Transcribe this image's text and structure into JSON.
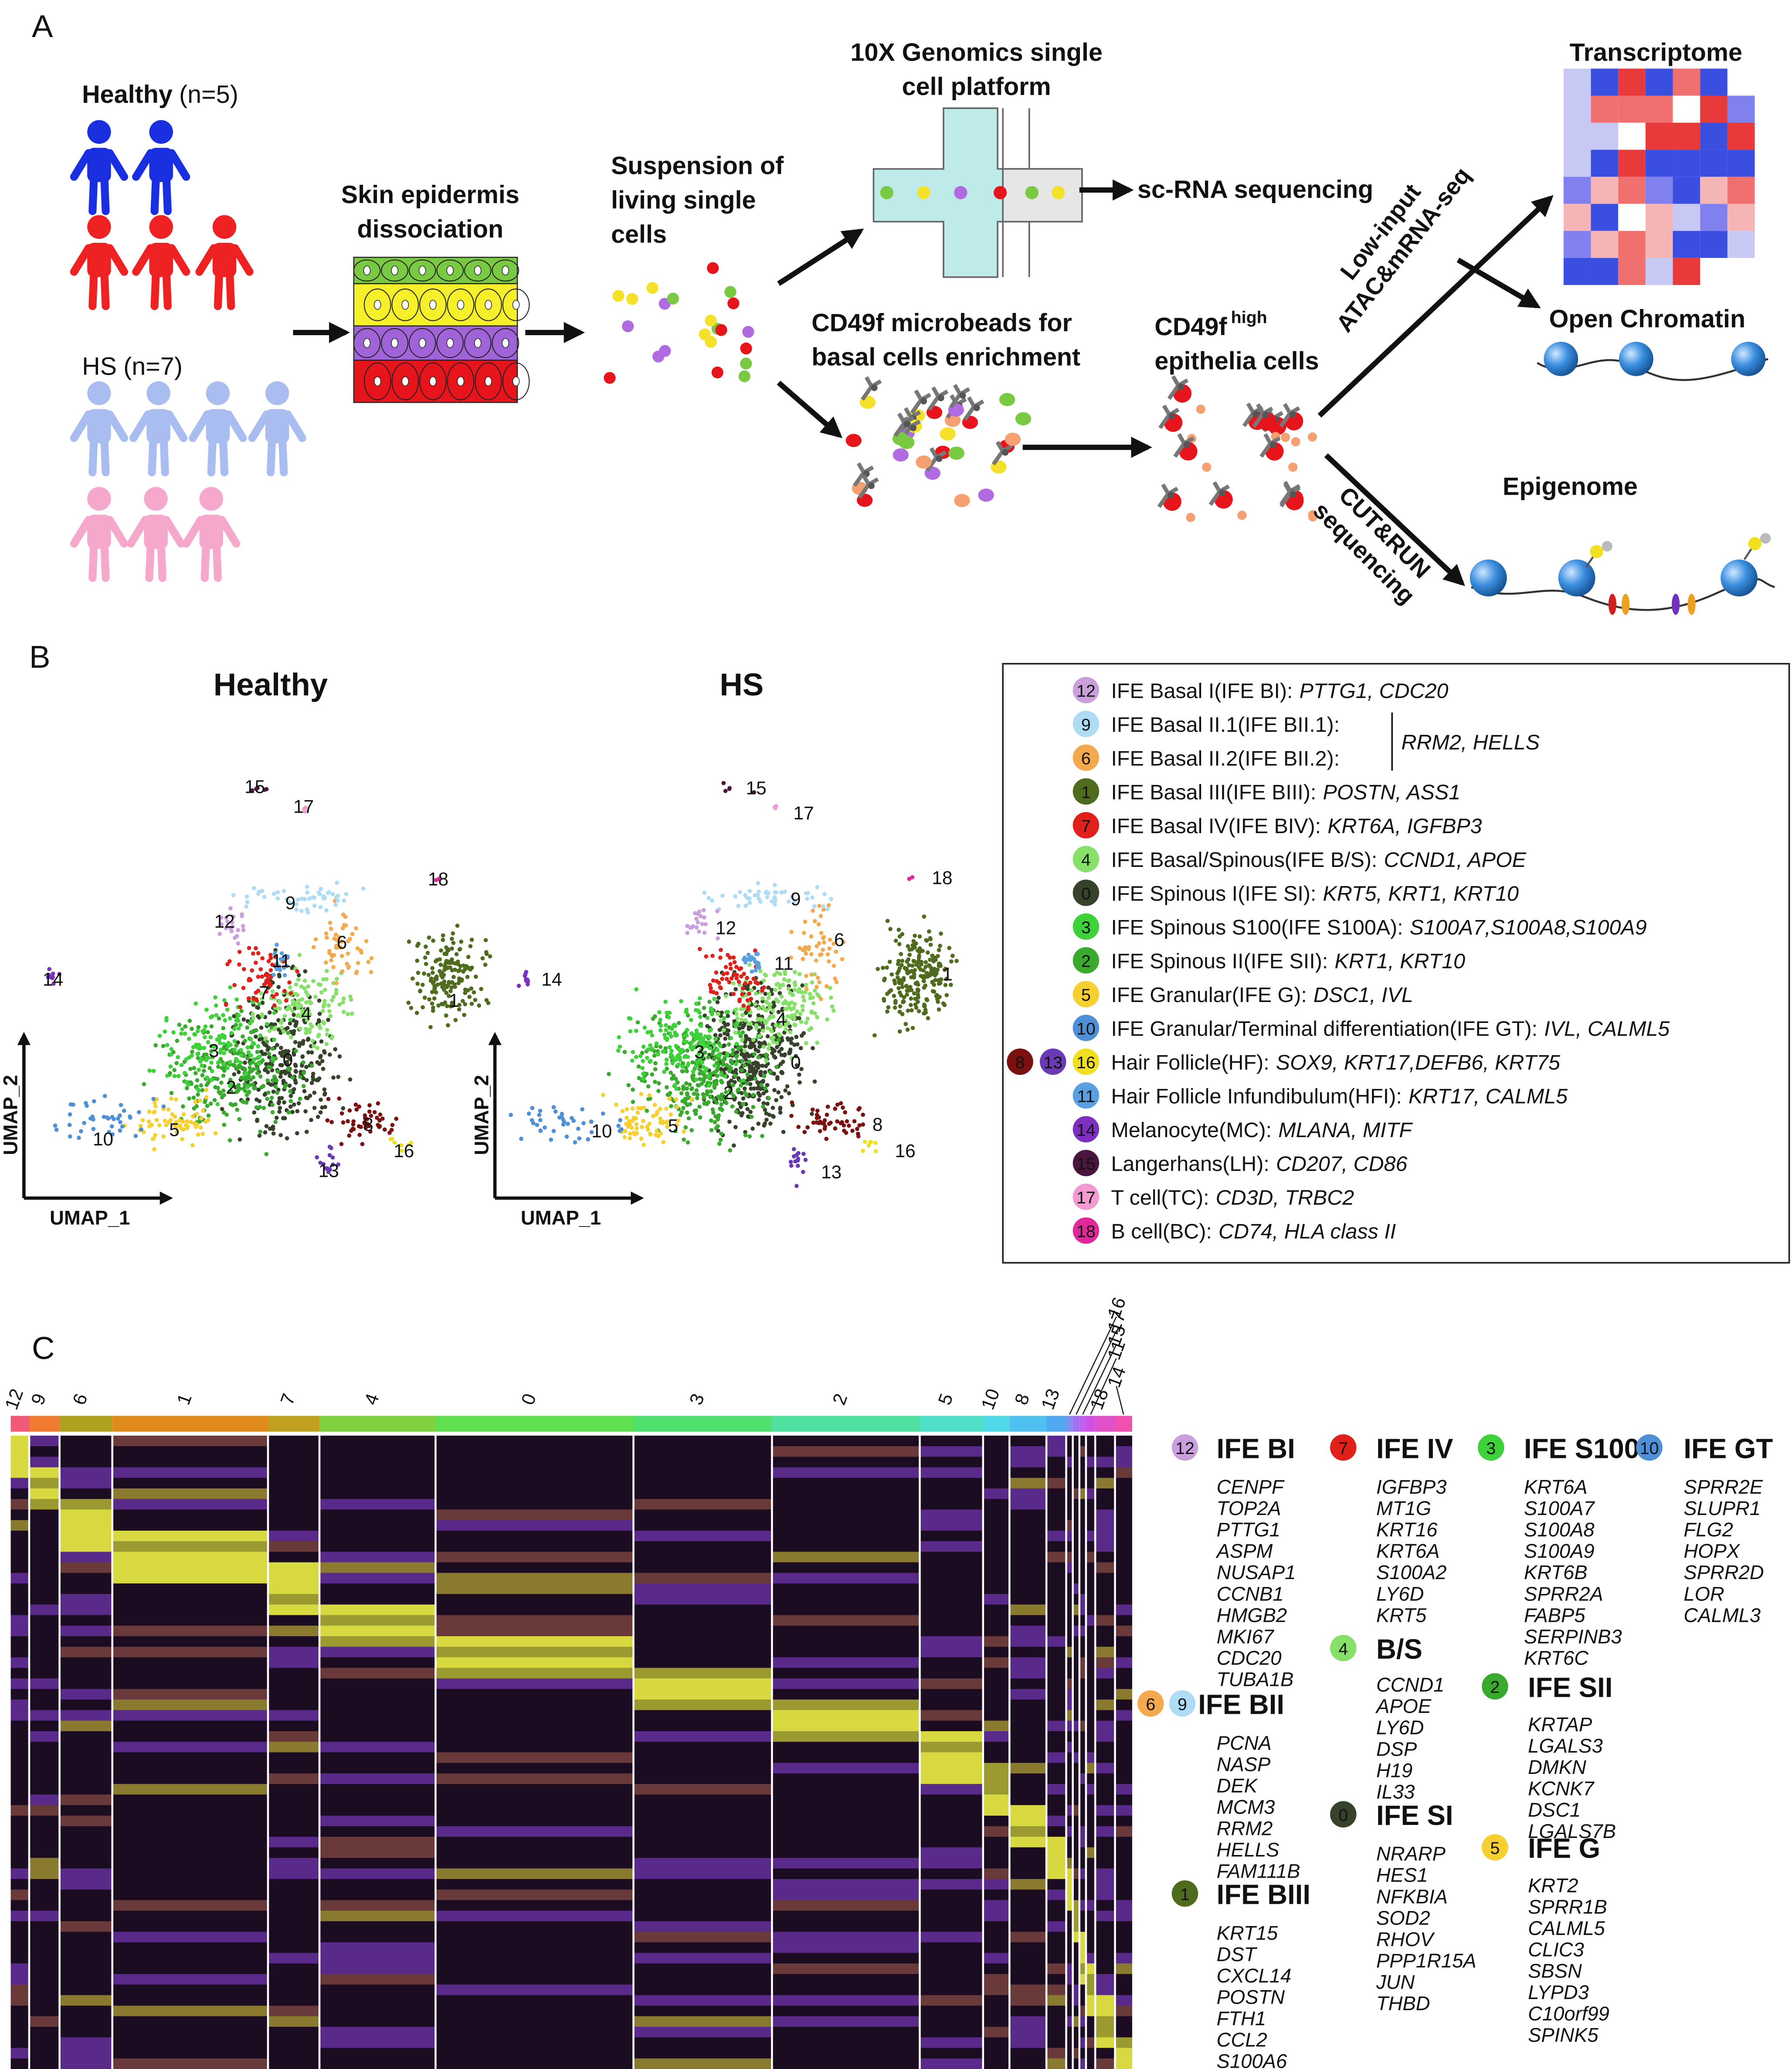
{
  "panel_a": {
    "label": "A",
    "healthy": {
      "name": "Healthy",
      "n": "(n=5)"
    },
    "hs": {
      "name": "HS",
      "n": "(n=7)"
    },
    "dissociation": [
      "Skin epidermis",
      "dissociation"
    ],
    "suspension": [
      "Suspension of",
      "living single",
      "cells"
    ],
    "platform": [
      "10X Genomics single",
      "cell platform"
    ],
    "sc_rna": "sc-RNA sequencing",
    "microbeads": [
      "CD49f microbeads for",
      "basal cells enrichment"
    ],
    "cd49f": {
      "name": "CD49f",
      "sup": "high",
      "line2": "epithelia cells"
    },
    "atac": [
      "Low-input",
      "ATAC&mRNA-seq"
    ],
    "cutrun": [
      "CUT&RUN",
      "sequencing"
    ],
    "transcriptome": "Transcriptome",
    "open_chromatin": "Open Chromatin",
    "epigenome": "Epigenome"
  },
  "panel_b": {
    "label": "B",
    "plots": [
      {
        "title": "Healthy",
        "x_label": "UMAP_1",
        "y_label": "UMAP_2",
        "clusters": [
          "15",
          "17",
          "18",
          "12",
          "9",
          "6",
          "11",
          "14",
          "7",
          "4",
          "1",
          "3",
          "0",
          "2",
          "8",
          "5",
          "10",
          "16",
          "13"
        ]
      },
      {
        "title": "HS",
        "x_label": "UMAP_1",
        "y_label": "UMAP_2",
        "clusters": [
          "15",
          "17",
          "18",
          "9",
          "12",
          "6",
          "11",
          "14",
          "1",
          "4",
          "3",
          "0",
          "2",
          "8",
          "5",
          "10",
          "16",
          "13"
        ]
      }
    ],
    "legend": [
      {
        "nums": [
          "12"
        ],
        "name": "IFE Basal I(IFE BI):",
        "genes": "PTTG1, CDC20"
      },
      {
        "nums": [
          "9"
        ],
        "name": "IFE Basal II.1(IFE BII.1):"
      },
      {
        "nums": [
          "6"
        ],
        "name": "IFE Basal II.2(IFE BII.2):"
      },
      {
        "nums": [
          "1"
        ],
        "name": "IFE Basal III(IFE BIII):",
        "genes": "POSTN, ASS1"
      },
      {
        "nums": [
          "7"
        ],
        "name": "IFE Basal IV(IFE BIV):",
        "genes": "KRT6A, IGFBP3"
      },
      {
        "nums": [
          "4"
        ],
        "name": "IFE Basal/Spinous(IFE B/S):",
        "genes": "CCND1, APOE"
      },
      {
        "nums": [
          "0"
        ],
        "name": "IFE Spinous I(IFE SI):",
        "genes": "KRT5, KRT1, KRT10"
      },
      {
        "nums": [
          "3"
        ],
        "name": "IFE Spinous S100(IFE S100A):",
        "genes": "S100A7,S100A8,S100A9"
      },
      {
        "nums": [
          "2"
        ],
        "name": "IFE Spinous II(IFE SII):",
        "genes": "KRT1, KRT10"
      },
      {
        "nums": [
          "5"
        ],
        "name": "IFE Granular(IFE G):",
        "genes": "DSC1, IVL"
      },
      {
        "nums": [
          "10"
        ],
        "name": "IFE Granular/Terminal differentiation(IFE GT):",
        "genes": "IVL, CALML5"
      },
      {
        "nums": [
          "8",
          "13",
          "16"
        ],
        "name": "Hair Follicle(HF):",
        "genes": "SOX9, KRT17,DEFB6, KRT75"
      },
      {
        "nums": [
          "11"
        ],
        "name": "Hair Follicle Infundibulum(HFI):",
        "genes": "KRT17, CALML5"
      },
      {
        "nums": [
          "14"
        ],
        "name": "Melanocyte(MC):",
        "genes": "MLANA, MITF"
      },
      {
        "nums": [
          "15"
        ],
        "name": "Langerhans(LH):",
        "genes": "CD207, CD86"
      },
      {
        "nums": [
          "17"
        ],
        "name": "T cell(TC):",
        "genes": "CD3D, TRBC2"
      },
      {
        "nums": [
          "18"
        ],
        "name": "B cell(BC):",
        "genes": "CD74, HLA class II"
      }
    ],
    "shared_genes": "RRM2, HELLS"
  },
  "panel_c": {
    "label": "C",
    "columns": [
      "12",
      "9",
      "6",
      "1",
      "7",
      "4",
      "0",
      "3",
      "2",
      "5",
      "10",
      "8",
      "13",
      "16",
      "17",
      "15",
      "11",
      "18",
      "14"
    ],
    "groups": [
      {
        "nums": [
          "12"
        ],
        "title": "IFE BI",
        "genes": [
          "CENPF",
          "TOP2A",
          "PTTG1",
          "ASPM",
          "NUSAP1",
          "CCNB1",
          "HMGB2",
          "MKI67",
          "CDC20",
          "TUBA1B"
        ]
      },
      {
        "nums": [
          "6",
          "9"
        ],
        "title": "IFE BII",
        "genes": [
          "PCNA",
          "NASP",
          "DEK",
          "MCM3",
          "RRM2",
          "HELLS",
          "FAM111B"
        ]
      },
      {
        "nums": [
          "1"
        ],
        "title": "IFE BIII",
        "genes": [
          "KRT15",
          "DST",
          "CXCL14",
          "POSTN",
          "FTH1",
          "CCL2",
          "S100A6"
        ]
      },
      {
        "nums": [
          "7"
        ],
        "title": "IFE IV",
        "genes": [
          "IGFBP3",
          "MT1G",
          "KRT16",
          "KRT6A",
          "S100A2",
          "LY6D",
          "KRT5"
        ]
      },
      {
        "nums": [
          "4"
        ],
        "title": "B/S",
        "genes": [
          "CCND1",
          "APOE",
          "LY6D",
          "DSP",
          "H19",
          "IL33"
        ]
      },
      {
        "nums": [
          "0"
        ],
        "title": "IFE SI",
        "genes": [
          "NRARP",
          "HES1",
          "NFKBIA",
          "SOD2",
          "RHOV",
          "PPP1R15A",
          "JUN",
          "THBD"
        ]
      },
      {
        "nums": [
          "3"
        ],
        "title": "IFE S100",
        "genes": [
          "KRT6A",
          "S100A7",
          "S100A8",
          "S100A9",
          "KRT6B",
          "SPRR2A",
          "FABP5",
          "SERPINB3",
          "KRT6C"
        ]
      },
      {
        "nums": [
          "2"
        ],
        "title": "IFE SII",
        "genes": [
          "KRTAP",
          "LGALS3",
          "DMKN",
          "KCNK7",
          "DSC1",
          "LGALS7B"
        ]
      },
      {
        "nums": [
          "5"
        ],
        "title": "IFE G",
        "genes": [
          "KRT2",
          "SPRR1B",
          "CALML5",
          "CLIC3",
          "SBSN",
          "LYPD3",
          "C10orf99",
          "SPINK5"
        ]
      },
      {
        "nums": [
          "10"
        ],
        "title": "IFE GT",
        "genes": [
          "SPRR2E",
          "SLUPR1",
          "FLG2",
          "HOPX",
          "SPRR2D",
          "LOR",
          "CALML3"
        ]
      }
    ]
  }
}
